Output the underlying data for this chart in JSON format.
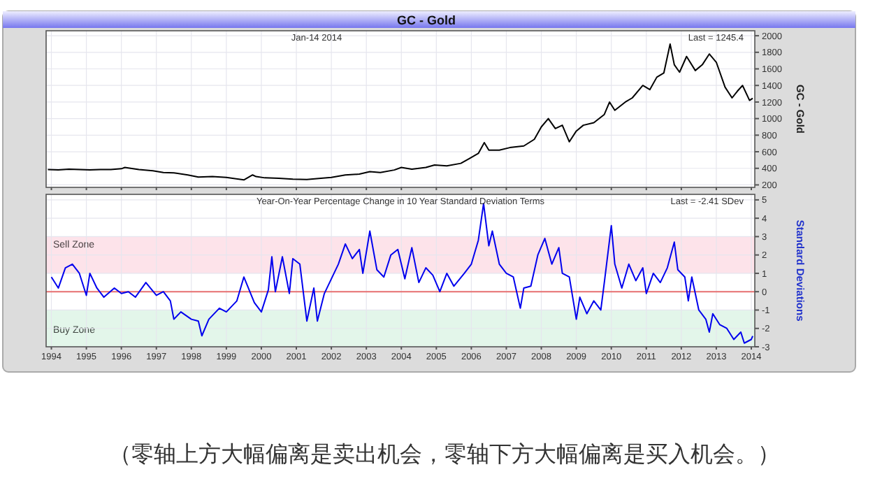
{
  "chart_data": [
    {
      "type": "line",
      "title": "GC - Gold",
      "ylabel": "GC - Gold",
      "annotations": [
        "Jan-14  2014",
        "Last = 1245.4"
      ],
      "x": [
        1993.9,
        1994.2,
        1994.5,
        1994.8,
        1995.1,
        1995.4,
        1995.7,
        1996.0,
        1996.1,
        1996.5,
        1996.9,
        1997.2,
        1997.5,
        1997.9,
        1998.2,
        1998.6,
        1999.0,
        1999.5,
        1999.75,
        1999.85,
        2000.1,
        2000.5,
        2000.9,
        2001.3,
        2001.7,
        2002.0,
        2002.4,
        2002.8,
        2003.1,
        2003.4,
        2003.8,
        2004.0,
        2004.3,
        2004.7,
        2004.95,
        2005.3,
        2005.7,
        2005.95,
        2006.2,
        2006.37,
        2006.5,
        2006.8,
        2007.1,
        2007.5,
        2007.8,
        2008.0,
        2008.2,
        2008.4,
        2008.6,
        2008.8,
        2009.0,
        2009.2,
        2009.5,
        2009.8,
        2009.95,
        2010.1,
        2010.4,
        2010.6,
        2010.9,
        2011.1,
        2011.3,
        2011.5,
        2011.68,
        2011.8,
        2011.95,
        2012.15,
        2012.4,
        2012.6,
        2012.8,
        2013.0,
        2013.25,
        2013.45,
        2013.6,
        2013.75,
        2013.95,
        2014.04
      ],
      "values": [
        385,
        380,
        390,
        385,
        380,
        385,
        385,
        395,
        410,
        385,
        370,
        350,
        345,
        320,
        295,
        300,
        290,
        260,
        320,
        300,
        285,
        280,
        270,
        265,
        280,
        290,
        320,
        330,
        360,
        350,
        380,
        410,
        390,
        410,
        440,
        430,
        460,
        520,
        580,
        710,
        620,
        620,
        650,
        670,
        750,
        900,
        1000,
        880,
        920,
        720,
        850,
        920,
        950,
        1050,
        1200,
        1100,
        1200,
        1250,
        1400,
        1350,
        1500,
        1550,
        1900,
        1650,
        1560,
        1750,
        1580,
        1650,
        1780,
        1680,
        1380,
        1250,
        1330,
        1400,
        1220,
        1245.4
      ],
      "color": "#000000",
      "xlim": [
        1993.85,
        2014.1
      ],
      "xticks": [
        1994,
        1995,
        1996,
        1997,
        1998,
        1999,
        2000,
        2001,
        2002,
        2003,
        2004,
        2005,
        2006,
        2007,
        2008,
        2009,
        2010,
        2011,
        2012,
        2013,
        2014
      ],
      "ylim": [
        170,
        2060
      ],
      "yticks": [
        200,
        400,
        600,
        800,
        1000,
        1200,
        1400,
        1600,
        1800,
        2000
      ],
      "grid": true,
      "tick_labels": "y"
    },
    {
      "type": "line",
      "ylabel": "Standard Deviations",
      "annotations": [
        "Year-On-Year Percentage Change in 10 Year Standard Deviation Terms",
        "Last = -2.41 SDev",
        "（零轴上方大幅偏离是卖出机会，零轴下方大幅偏离是买入机会。）"
      ],
      "x": [
        1994.0,
        1994.2,
        1994.4,
        1994.6,
        1994.8,
        1995.0,
        1995.1,
        1995.3,
        1995.5,
        1995.8,
        1996.0,
        1996.2,
        1996.4,
        1996.7,
        1997.0,
        1997.2,
        1997.4,
        1997.5,
        1997.7,
        1998.0,
        1998.2,
        1998.3,
        1998.5,
        1998.8,
        1999.0,
        1999.3,
        1999.5,
        1999.8,
        2000.0,
        2000.2,
        2000.3,
        2000.4,
        2000.6,
        2000.8,
        2000.9,
        2001.1,
        2001.3,
        2001.5,
        2001.6,
        2001.8,
        2002.0,
        2002.2,
        2002.4,
        2002.6,
        2002.8,
        2002.9,
        2003.1,
        2003.3,
        2003.5,
        2003.7,
        2003.9,
        2004.1,
        2004.3,
        2004.5,
        2004.7,
        2004.9,
        2005.1,
        2005.3,
        2005.5,
        2005.8,
        2006.0,
        2006.2,
        2006.35,
        2006.5,
        2006.6,
        2006.8,
        2007.0,
        2007.2,
        2007.4,
        2007.5,
        2007.7,
        2007.9,
        2008.1,
        2008.3,
        2008.5,
        2008.6,
        2008.8,
        2009.0,
        2009.1,
        2009.3,
        2009.5,
        2009.7,
        2009.8,
        2010.0,
        2010.1,
        2010.3,
        2010.5,
        2010.7,
        2010.9,
        2011.0,
        2011.2,
        2011.4,
        2011.6,
        2011.8,
        2011.9,
        2012.1,
        2012.2,
        2012.3,
        2012.5,
        2012.7,
        2012.8,
        2012.9,
        2013.1,
        2013.3,
        2013.5,
        2013.7,
        2013.8,
        2014.0,
        2014.04
      ],
      "values": [
        0.8,
        0.2,
        1.3,
        1.5,
        1.0,
        -0.2,
        1.0,
        0.2,
        -0.3,
        0.2,
        -0.1,
        0.0,
        -0.3,
        0.5,
        -0.2,
        0.0,
        -0.5,
        -1.5,
        -1.1,
        -1.5,
        -1.6,
        -2.4,
        -1.5,
        -0.9,
        -1.1,
        -0.5,
        0.8,
        -0.6,
        -1.1,
        0.1,
        1.9,
        0.0,
        1.9,
        -0.1,
        1.8,
        1.5,
        -1.6,
        0.2,
        -1.6,
        -0.1,
        0.7,
        1.5,
        2.6,
        1.8,
        2.3,
        1.0,
        3.3,
        1.2,
        0.8,
        2.0,
        2.3,
        0.7,
        2.4,
        0.5,
        1.3,
        0.9,
        0.0,
        1.0,
        0.3,
        1.0,
        1.5,
        2.8,
        4.8,
        2.5,
        3.3,
        1.5,
        1.0,
        0.8,
        -0.9,
        0.2,
        0.3,
        2.0,
        2.9,
        1.5,
        2.4,
        1.0,
        0.8,
        -1.5,
        -0.3,
        -1.2,
        -0.5,
        -1.0,
        0.5,
        3.6,
        1.5,
        0.2,
        1.5,
        0.6,
        1.3,
        -0.1,
        1.0,
        0.5,
        1.3,
        2.7,
        1.2,
        0.8,
        -0.5,
        0.8,
        -1.0,
        -1.5,
        -2.2,
        -1.2,
        -1.8,
        -2.0,
        -2.6,
        -2.2,
        -2.8,
        -2.6,
        -2.41
      ],
      "color": "#0000ee",
      "xlim": [
        1993.85,
        2014.1
      ],
      "xticks": [
        1994,
        1995,
        1996,
        1997,
        1998,
        1999,
        2000,
        2001,
        2002,
        2003,
        2004,
        2005,
        2006,
        2007,
        2008,
        2009,
        2010,
        2011,
        2012,
        2013,
        2014
      ],
      "ylim": [
        -3,
        5.3
      ],
      "yticks": [
        -3,
        -2,
        -1,
        0,
        1,
        2,
        3,
        4,
        5
      ],
      "grid": true,
      "bands": [
        {
          "axis": "y",
          "from": 1,
          "to": 3,
          "label": "Sell Zone",
          "color": "#fde3ea"
        },
        {
          "axis": "y",
          "from": -3,
          "to": -1,
          "label": "Buy Zone",
          "color": "#e3f6ea"
        }
      ],
      "ref_lines": [
        {
          "axis": "y",
          "value": 0,
          "color": "#e87070"
        }
      ]
    }
  ]
}
